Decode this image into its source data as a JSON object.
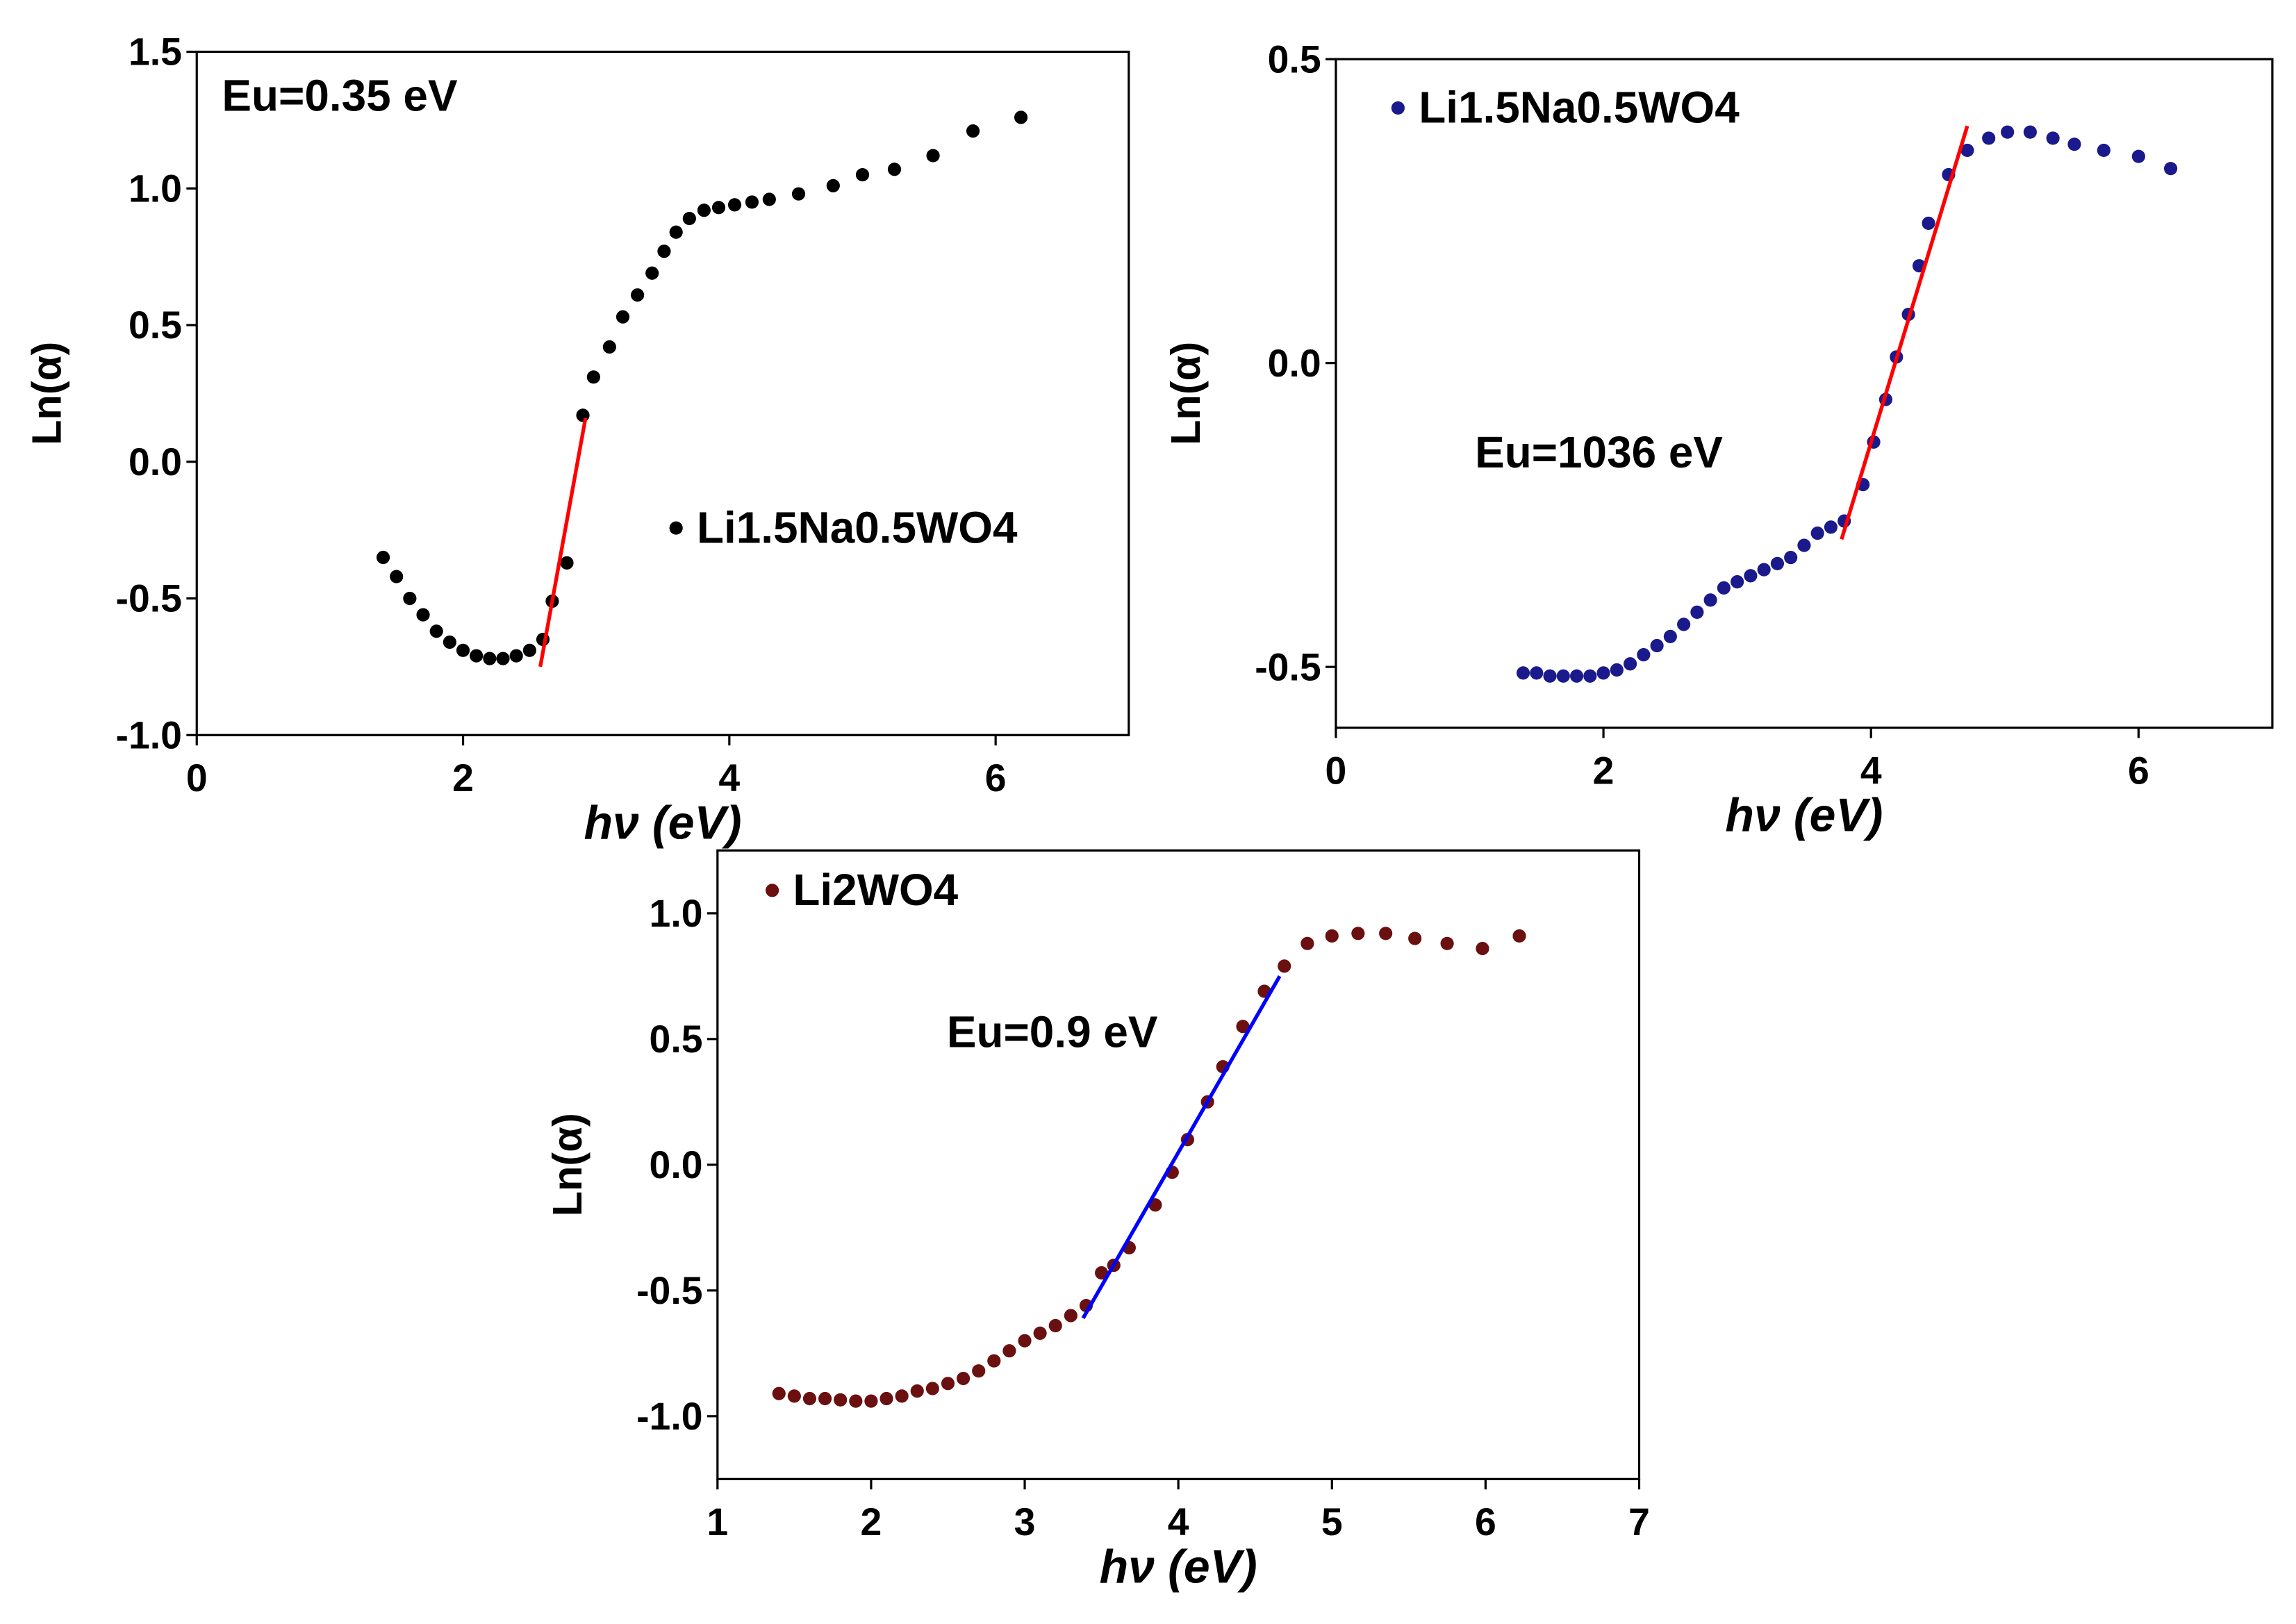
{
  "chart_data": [
    {
      "type": "scatter",
      "xlabel": "hν (eV)",
      "ylabel": "Ln(α)",
      "annotation": "Eu=0.35 eV",
      "xlim": [
        0,
        7
      ],
      "ylim": [
        -1.0,
        1.5
      ],
      "xticks": [
        0,
        2,
        4,
        6
      ],
      "yticks": [
        1.5,
        {
          "value": 1.0,
          "label": "1.0"
        },
        0.5,
        {
          "value": 0,
          "label": "0.0"
        },
        -0.5,
        {
          "value": -1.0,
          "label": "-1.0"
        }
      ],
      "series": [
        {
          "name": "Li1.5Na0.5WO4",
          "color": "#000000",
          "x": [
            1.4,
            1.5,
            1.6,
            1.7,
            1.8,
            1.9,
            2.0,
            2.1,
            2.2,
            2.3,
            2.4,
            2.5,
            2.6,
            2.67,
            2.78,
            2.9,
            2.98,
            3.1,
            3.2,
            3.31,
            3.42,
            3.51,
            3.6,
            3.7,
            3.81,
            3.92,
            4.04,
            4.17,
            4.3,
            4.52,
            4.78,
            5.0,
            5.24,
            5.53,
            5.83,
            6.19
          ],
          "values": [
            -0.35,
            -0.42,
            -0.5,
            -0.56,
            -0.62,
            -0.66,
            -0.69,
            -0.71,
            -0.72,
            -0.72,
            -0.71,
            -0.69,
            -0.65,
            -0.51,
            -0.37,
            0.17,
            0.31,
            0.42,
            0.53,
            0.61,
            0.69,
            0.77,
            0.84,
            0.89,
            0.92,
            0.93,
            0.94,
            0.95,
            0.96,
            0.98,
            1.01,
            1.05,
            1.07,
            1.12,
            1.21,
            1.26
          ]
        }
      ],
      "fit_line": {
        "color": "#ff0000",
        "x": [
          2.58,
          2.92
        ],
        "y": [
          -0.75,
          0.16
        ]
      }
    },
    {
      "type": "scatter",
      "xlabel": "hν (eV)",
      "ylabel": "Ln(α)",
      "annotation": "Eu=1036 eV",
      "xlim": [
        0,
        7
      ],
      "ylim": [
        -0.6,
        0.5
      ],
      "xticks": [
        0,
        2,
        4,
        6
      ],
      "yticks": [
        0.5,
        {
          "value": 0,
          "label": "0.0"
        },
        -0.5
      ],
      "series": [
        {
          "name": "Li1.5Na0.5WO4",
          "color": "#1a1a8c",
          "x": [
            1.4,
            1.5,
            1.6,
            1.7,
            1.8,
            1.9,
            2.0,
            2.1,
            2.2,
            2.3,
            2.4,
            2.5,
            2.6,
            2.7,
            2.8,
            2.9,
            3.0,
            3.1,
            3.2,
            3.3,
            3.4,
            3.5,
            3.6,
            3.7,
            3.8,
            3.94,
            4.02,
            4.11,
            4.19,
            4.28,
            4.36,
            4.43,
            4.58,
            4.72,
            4.88,
            5.02,
            5.19,
            5.36,
            5.52,
            5.74,
            6.0,
            6.24
          ],
          "values": [
            -0.51,
            -0.51,
            -0.515,
            -0.515,
            -0.515,
            -0.515,
            -0.51,
            -0.505,
            -0.495,
            -0.48,
            -0.465,
            -0.45,
            -0.43,
            -0.41,
            -0.39,
            -0.37,
            -0.36,
            -0.35,
            -0.34,
            -0.33,
            -0.32,
            -0.3,
            -0.28,
            -0.27,
            -0.26,
            -0.2,
            -0.13,
            -0.06,
            0.01,
            0.08,
            0.16,
            0.23,
            0.31,
            0.35,
            0.37,
            0.38,
            0.38,
            0.37,
            0.36,
            0.35,
            0.34,
            0.32
          ]
        }
      ],
      "fit_line": {
        "color": "#ff0000",
        "x": [
          3.78,
          4.72
        ],
        "y": [
          -0.29,
          0.39
        ]
      }
    },
    {
      "type": "scatter",
      "xlabel": "hν (eV)",
      "ylabel": "Ln(α)",
      "annotation": "Eu=0.9 eV",
      "xlim": [
        1,
        7
      ],
      "ylim": [
        -1.25,
        1.25
      ],
      "xticks": [
        1,
        2,
        3,
        4,
        5,
        6,
        7
      ],
      "yticks": [
        {
          "value": 1.0,
          "label": "1.0"
        },
        0.5,
        {
          "value": 0,
          "label": "0.0"
        },
        -0.5,
        {
          "value": -1.0,
          "label": "-1.0"
        }
      ],
      "series": [
        {
          "name": "Li2WO4",
          "color": "#6b1010",
          "x": [
            1.4,
            1.5,
            1.6,
            1.7,
            1.8,
            1.9,
            2.0,
            2.1,
            2.2,
            2.3,
            2.4,
            2.5,
            2.6,
            2.7,
            2.8,
            2.9,
            3.0,
            3.1,
            3.2,
            3.3,
            3.4,
            3.5,
            3.58,
            3.68,
            3.85,
            3.96,
            4.06,
            4.19,
            4.29,
            4.42,
            4.56,
            4.69,
            4.84,
            5.0,
            5.17,
            5.35,
            5.54,
            5.75,
            5.98,
            6.22
          ],
          "values": [
            -0.91,
            -0.92,
            -0.93,
            -0.93,
            -0.935,
            -0.94,
            -0.94,
            -0.93,
            -0.92,
            -0.9,
            -0.89,
            -0.87,
            -0.85,
            -0.82,
            -0.78,
            -0.74,
            -0.7,
            -0.67,
            -0.64,
            -0.6,
            -0.56,
            -0.43,
            -0.4,
            -0.33,
            -0.16,
            -0.03,
            0.1,
            0.25,
            0.39,
            0.55,
            0.69,
            0.79,
            0.88,
            0.91,
            0.92,
            0.92,
            0.9,
            0.88,
            0.86,
            0.91
          ]
        }
      ],
      "fit_line": {
        "color": "#0000ff",
        "x": [
          3.38,
          4.66
        ],
        "y": [
          -0.61,
          0.75
        ]
      }
    }
  ]
}
